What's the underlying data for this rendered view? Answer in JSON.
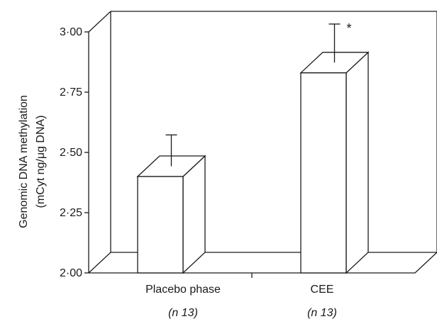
{
  "chart_data": {
    "type": "bar",
    "style": "3d",
    "categories": [
      "Placebo phase",
      "CEE"
    ],
    "category_notes": [
      "(n 13)",
      "(n 13)"
    ],
    "values": [
      2.4,
      2.83
    ],
    "error_upper": [
      2.53,
      2.99
    ],
    "annotations": [
      "",
      "*"
    ],
    "ylabel_line1": "Genomic DNA methylation",
    "ylabel_line2": "(mCyt  ng/μg DNA)",
    "ylim": [
      2.0,
      3.0
    ],
    "yticks": [
      2.0,
      2.25,
      2.5,
      2.75,
      3.0
    ],
    "ytick_labels": [
      "2·00",
      "2·25",
      "2·50",
      "2·75",
      "3·00"
    ],
    "grid": false,
    "legend": "none"
  }
}
